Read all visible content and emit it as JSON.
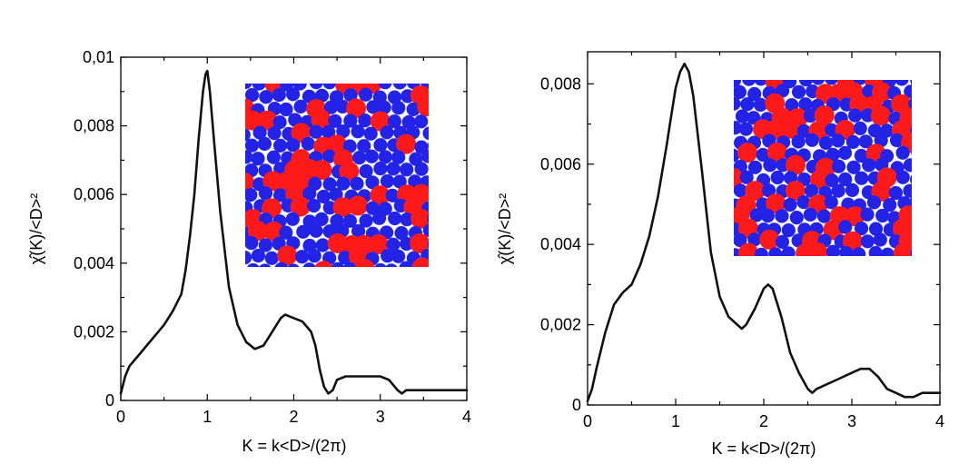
{
  "chart_data": [
    {
      "type": "line",
      "xlabel": "K = k<D>/(2π)",
      "ylabel": "χ̂(K)/<D>²",
      "xlim": [
        0,
        4
      ],
      "ylim": [
        0,
        0.01
      ],
      "x_ticks": [
        "0",
        "1",
        "2",
        "3",
        "4"
      ],
      "y_ticks": [
        "0",
        "0.002",
        "0.004",
        "0.006",
        "0.008",
        "0.01"
      ],
      "y_tick_labels": [
        "0",
        "0,002",
        "0,004",
        "0,006",
        "0,008",
        "0,01"
      ],
      "grid": false,
      "inset": "bidisperse disk packing snapshot (red large, blue small)",
      "series": [
        {
          "x": [
            0,
            0.05,
            0.1,
            0.2,
            0.3,
            0.4,
            0.5,
            0.6,
            0.7,
            0.75,
            0.8,
            0.85,
            0.9,
            0.95,
            0.98,
            1.0,
            1.03,
            1.08,
            1.15,
            1.25,
            1.35,
            1.45,
            1.55,
            1.65,
            1.75,
            1.85,
            1.9,
            2.0,
            2.1,
            2.2,
            2.25,
            2.3,
            2.35,
            2.4,
            2.45,
            2.5,
            2.6,
            2.8,
            3.0,
            3.1,
            3.2,
            3.25,
            3.3,
            3.4,
            3.6,
            3.8,
            4.0
          ],
          "y": [
            0.0002,
            0.0007,
            0.001,
            0.0013,
            0.0016,
            0.0019,
            0.0022,
            0.0026,
            0.0031,
            0.0038,
            0.0048,
            0.006,
            0.0076,
            0.009,
            0.0095,
            0.0096,
            0.009,
            0.0075,
            0.0055,
            0.0033,
            0.0022,
            0.0017,
            0.0015,
            0.0016,
            0.002,
            0.0024,
            0.0025,
            0.0024,
            0.0023,
            0.002,
            0.0016,
            0.0009,
            0.0004,
            0.0002,
            0.0003,
            0.0006,
            0.0007,
            0.0007,
            0.0007,
            0.0006,
            0.0003,
            0.0002,
            0.0003,
            0.0003,
            0.0003,
            0.0003,
            0.0003
          ]
        }
      ]
    },
    {
      "type": "line",
      "xlabel": "K = k<D>/(2π)",
      "ylabel": "χ̂(K)/<D>²",
      "xlim": [
        0,
        4
      ],
      "ylim": [
        0,
        0.0088
      ],
      "x_ticks": [
        "0",
        "1",
        "2",
        "3",
        "4"
      ],
      "y_ticks": [
        "0",
        "0.002",
        "0.004",
        "0.006",
        "0.008"
      ],
      "y_tick_labels": [
        "0",
        "0,002",
        "0,004",
        "0,006",
        "0,008"
      ],
      "grid": false,
      "inset": "bidisperse disk packing snapshot (red large, blue small)",
      "series": [
        {
          "x": [
            0,
            0.05,
            0.1,
            0.2,
            0.3,
            0.4,
            0.5,
            0.6,
            0.7,
            0.8,
            0.9,
            0.95,
            1.0,
            1.05,
            1.1,
            1.15,
            1.2,
            1.3,
            1.4,
            1.5,
            1.6,
            1.7,
            1.75,
            1.8,
            1.9,
            2.0,
            2.05,
            2.1,
            2.2,
            2.3,
            2.4,
            2.5,
            2.55,
            2.6,
            2.8,
            3.0,
            3.1,
            3.2,
            3.3,
            3.4,
            3.5,
            3.6,
            3.7,
            3.8,
            3.9,
            4.0
          ],
          "y": [
            0.0001,
            0.0004,
            0.0009,
            0.0018,
            0.0025,
            0.0028,
            0.003,
            0.0035,
            0.0042,
            0.0052,
            0.0065,
            0.0072,
            0.0079,
            0.0083,
            0.0085,
            0.0083,
            0.0077,
            0.0058,
            0.0038,
            0.0027,
            0.0022,
            0.002,
            0.0019,
            0.002,
            0.0024,
            0.0029,
            0.003,
            0.0029,
            0.0022,
            0.0013,
            0.0008,
            0.0004,
            0.0003,
            0.0004,
            0.0006,
            0.0008,
            0.0009,
            0.0009,
            0.0007,
            0.0004,
            0.0003,
            0.0002,
            0.0002,
            0.0003,
            0.0003,
            0.0003
          ]
        }
      ]
    }
  ],
  "colors": {
    "large_disk": "#ff1a1a",
    "small_disk": "#2323e8",
    "axis": "#000000"
  }
}
